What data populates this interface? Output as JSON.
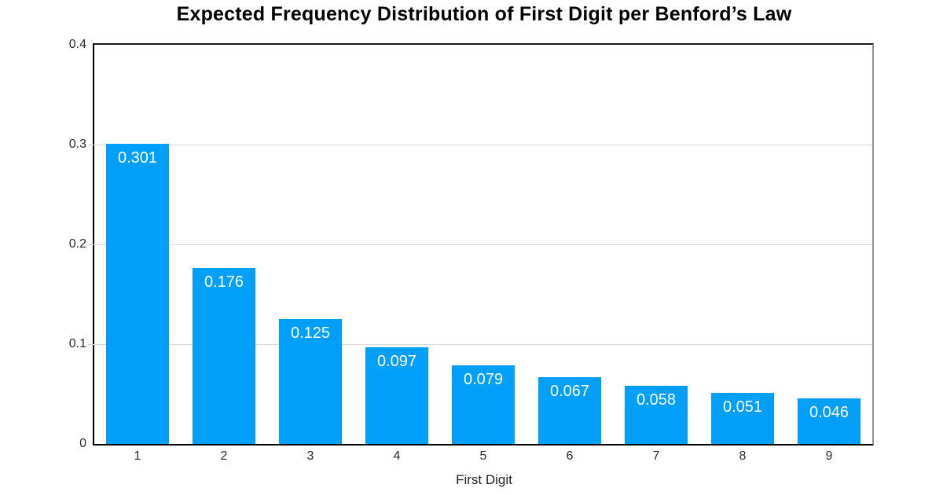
{
  "chart_data": {
    "type": "bar",
    "title": "Expected Frequency Distribution of First Digit per Benford’s Law",
    "xlabel": "First Digit",
    "ylabel": "",
    "categories": [
      "1",
      "2",
      "3",
      "4",
      "5",
      "6",
      "7",
      "8",
      "9"
    ],
    "values": [
      0.301,
      0.176,
      0.125,
      0.097,
      0.079,
      0.067,
      0.058,
      0.051,
      0.046
    ],
    "value_labels": [
      "0.301",
      "0.176",
      "0.125",
      "0.097",
      "0.079",
      "0.067",
      "0.058",
      "0.051",
      "0.046"
    ],
    "ylim": [
      0,
      0.4
    ],
    "yticks": [
      {
        "value": 0,
        "label": "0"
      },
      {
        "value": 0.1,
        "label": "0.1"
      },
      {
        "value": 0.2,
        "label": "0.2"
      },
      {
        "value": 0.3,
        "label": "0.3"
      },
      {
        "value": 0.4,
        "label": "0.4"
      }
    ],
    "grid": true,
    "legend": "none",
    "colors": {
      "bar": "#00A0FA",
      "bar_label": "#FFFFFF",
      "gridline": "#D6D6D6",
      "axis": "#000000",
      "plot_border_right": "#8F8F8F",
      "tick_text": "#2D2D2D",
      "title_text": "#000000"
    }
  }
}
